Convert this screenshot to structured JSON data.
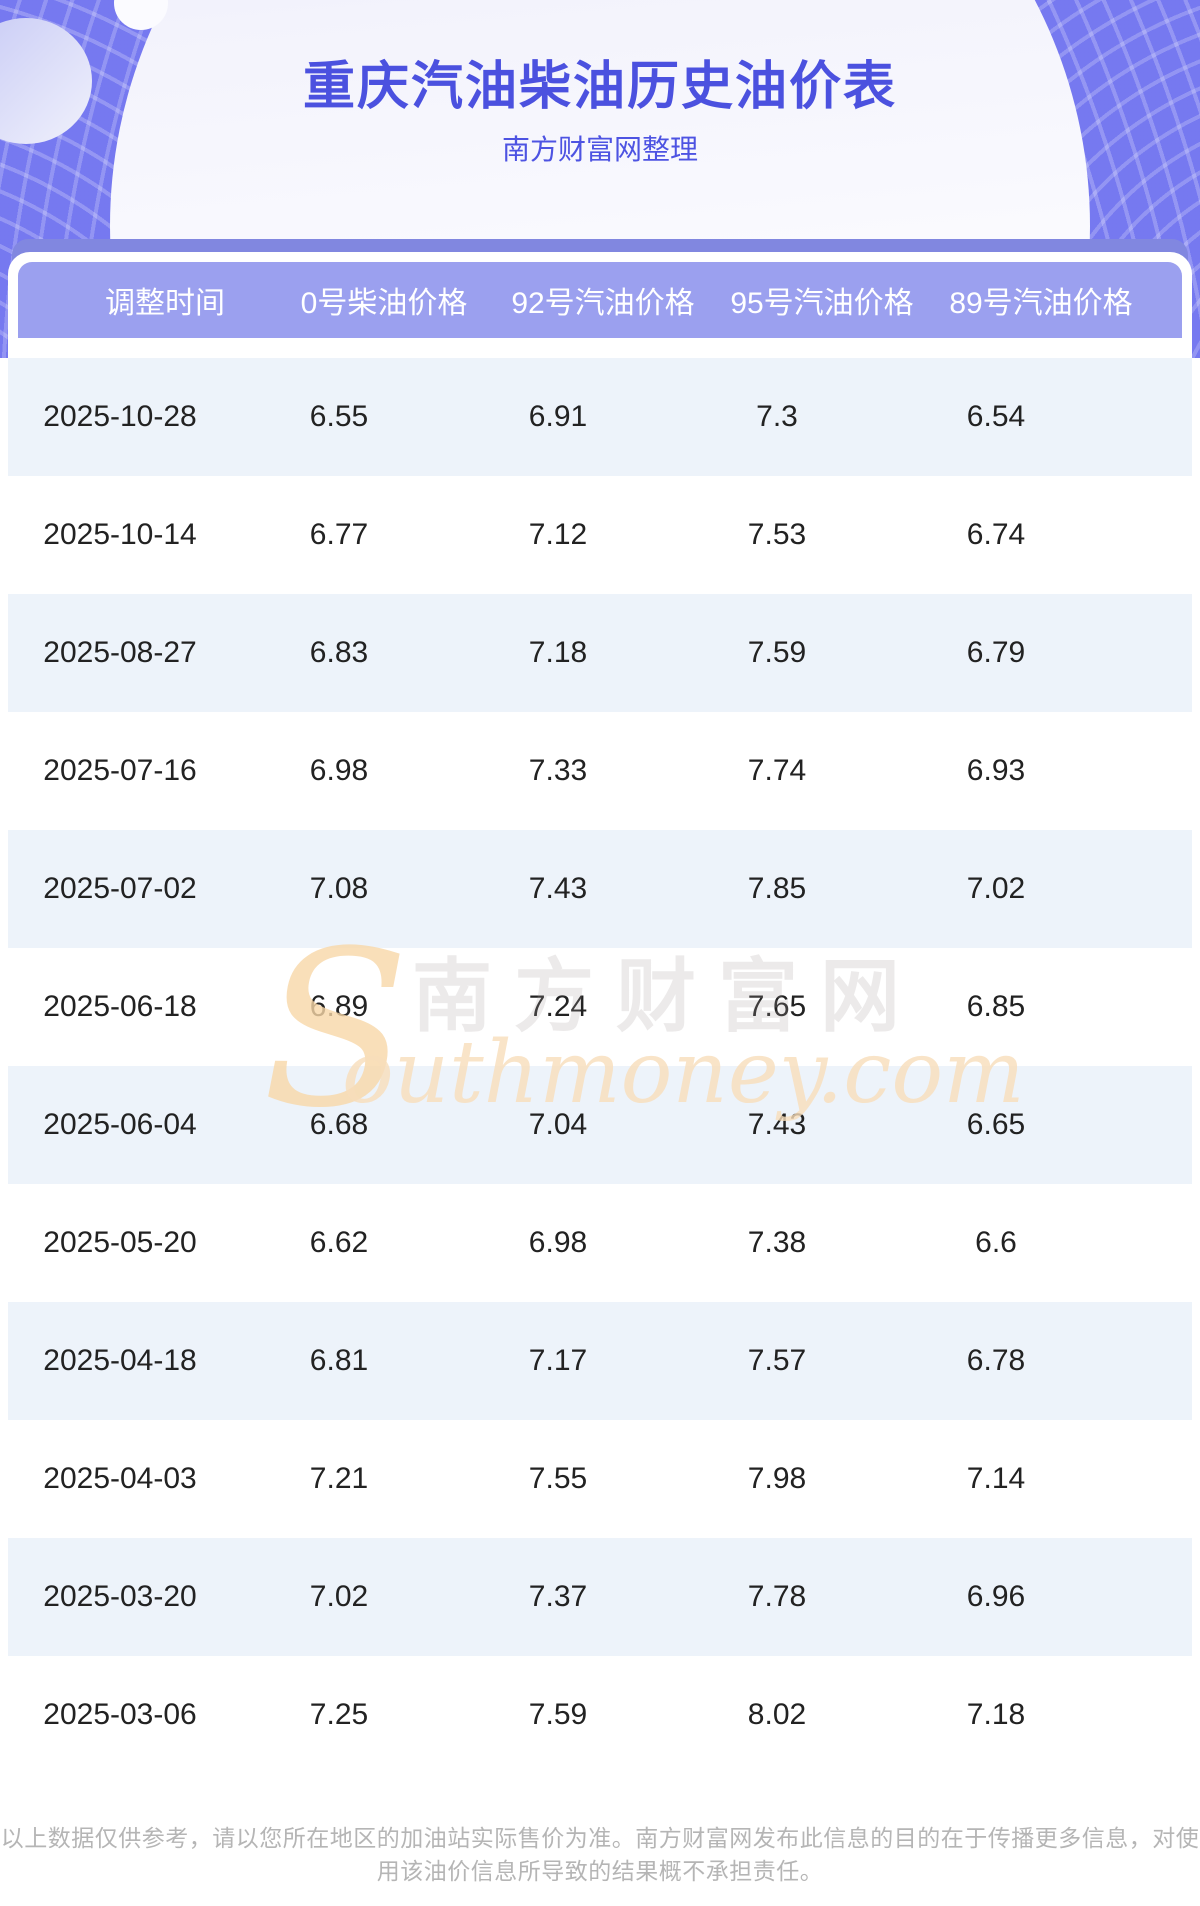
{
  "hero": {
    "title": "重庆汽油柴油历史油价表",
    "subtitle": "南方财富网整理"
  },
  "table": {
    "columns": [
      "调整时间",
      "0号柴油价格",
      "92号汽油价格",
      "95号汽油价格",
      "89号汽油价格"
    ],
    "rows": [
      [
        "2025-10-28",
        "6.55",
        "6.91",
        "7.3",
        "6.54"
      ],
      [
        "2025-10-14",
        "6.77",
        "7.12",
        "7.53",
        "6.74"
      ],
      [
        "2025-08-27",
        "6.83",
        "7.18",
        "7.59",
        "6.79"
      ],
      [
        "2025-07-16",
        "6.98",
        "7.33",
        "7.74",
        "6.93"
      ],
      [
        "2025-07-02",
        "7.08",
        "7.43",
        "7.85",
        "7.02"
      ],
      [
        "2025-06-18",
        "6.89",
        "7.24",
        "7.65",
        "6.85"
      ],
      [
        "2025-06-04",
        "6.68",
        "7.04",
        "7.43",
        "6.65"
      ],
      [
        "2025-05-20",
        "6.62",
        "6.98",
        "7.38",
        "6.6"
      ],
      [
        "2025-04-18",
        "6.81",
        "7.17",
        "7.57",
        "6.78"
      ],
      [
        "2025-04-03",
        "7.21",
        "7.55",
        "7.98",
        "7.14"
      ],
      [
        "2025-03-20",
        "7.02",
        "7.37",
        "7.78",
        "6.96"
      ],
      [
        "2025-03-06",
        "7.25",
        "7.59",
        "8.02",
        "7.18"
      ]
    ]
  },
  "watermark": {
    "flame_letter": "S",
    "cn": "南方财富网",
    "en": "outhmoney.com"
  },
  "footer": {
    "disclaimer": "以上数据仅供参考，请以您所在地区的加油站实际售价为准。南方财富网发布此信息的目的在于传播更多信息，对使用该油价信息所导致的结果概不承担责任。"
  },
  "colors": {
    "brand_purple": "#6467ee",
    "bar_purple": "#8187e0",
    "table_header_purple": "#9ba0ef",
    "row_alt_blue": "#edf3fa",
    "title_blue": "#4b51df",
    "footer_gray": "#b5b5b5",
    "watermark_orange": "#f7d7a8"
  },
  "chart_data": {
    "type": "table",
    "title": "重庆汽油柴油历史油价表",
    "columns": [
      "调整时间",
      "0号柴油价格",
      "92号汽油价格",
      "95号汽油价格",
      "89号汽油价格"
    ],
    "rows": [
      [
        "2025-10-28",
        6.55,
        6.91,
        7.3,
        6.54
      ],
      [
        "2025-10-14",
        6.77,
        7.12,
        7.53,
        6.74
      ],
      [
        "2025-08-27",
        6.83,
        7.18,
        7.59,
        6.79
      ],
      [
        "2025-07-16",
        6.98,
        7.33,
        7.74,
        6.93
      ],
      [
        "2025-07-02",
        7.08,
        7.43,
        7.85,
        7.02
      ],
      [
        "2025-06-18",
        6.89,
        7.24,
        7.65,
        6.85
      ],
      [
        "2025-06-04",
        6.68,
        7.04,
        7.43,
        6.65
      ],
      [
        "2025-05-20",
        6.62,
        6.98,
        7.38,
        6.6
      ],
      [
        "2025-04-18",
        6.81,
        7.17,
        7.57,
        6.78
      ],
      [
        "2025-04-03",
        7.21,
        7.55,
        7.98,
        7.14
      ],
      [
        "2025-03-20",
        7.02,
        7.37,
        7.78,
        6.96
      ],
      [
        "2025-03-06",
        7.25,
        7.59,
        8.02,
        7.18
      ]
    ]
  }
}
